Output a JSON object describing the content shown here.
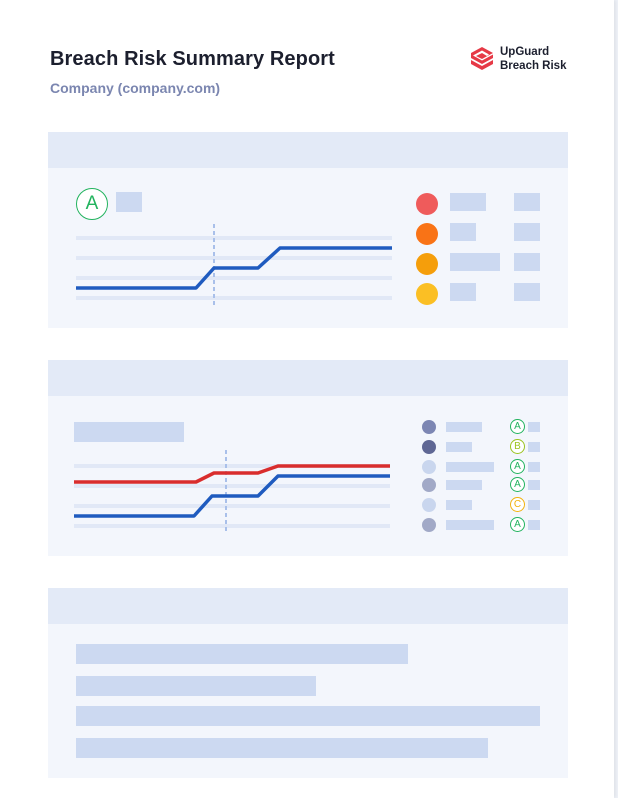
{
  "header": {
    "title": "Breach Risk Summary Report",
    "subtitle": "Company (company.com)"
  },
  "brand": {
    "name_line1": "UpGuard",
    "name_line2": "Breach Risk",
    "logo_icon": "upguard-logo-icon",
    "color": "#e63946"
  },
  "section1": {
    "overall_grade": "A",
    "grade_color": "#22b35e",
    "chart_data": {
      "type": "line",
      "series": [
        {
          "color": "#1f5bbf",
          "values": [
            0,
            0,
            1,
            1,
            2,
            2
          ]
        }
      ]
    },
    "risk_indicators": [
      {
        "severity": "critical",
        "color": "#ef5b5b"
      },
      {
        "severity": "high",
        "color": "#f97316"
      },
      {
        "severity": "medium",
        "color": "#f59e0b"
      },
      {
        "severity": "low",
        "color": "#fbbf24"
      }
    ]
  },
  "section2": {
    "chart_data": {
      "type": "line",
      "series": [
        {
          "color": "#d92d2d",
          "values": [
            1,
            1,
            2,
            2,
            3,
            3
          ]
        },
        {
          "color": "#1f5bbf",
          "values": [
            0,
            0,
            1,
            1,
            2,
            2
          ]
        }
      ]
    },
    "vendors": [
      {
        "dot_color": "#7c86b3",
        "grade": "A",
        "grade_color": "#22b35e"
      },
      {
        "dot_color": "#5f6794",
        "grade": "B",
        "grade_color": "#9bc31f"
      },
      {
        "dot_color": "#c9d6ee",
        "grade": "A",
        "grade_color": "#22b35e"
      },
      {
        "dot_color": "#a1a9c7",
        "grade": "A",
        "grade_color": "#22b35e"
      },
      {
        "dot_color": "#c9d6ee",
        "grade": "C",
        "grade_color": "#f2b20c"
      },
      {
        "dot_color": "#a1a9c7",
        "grade": "A",
        "grade_color": "#22b35e"
      }
    ]
  }
}
